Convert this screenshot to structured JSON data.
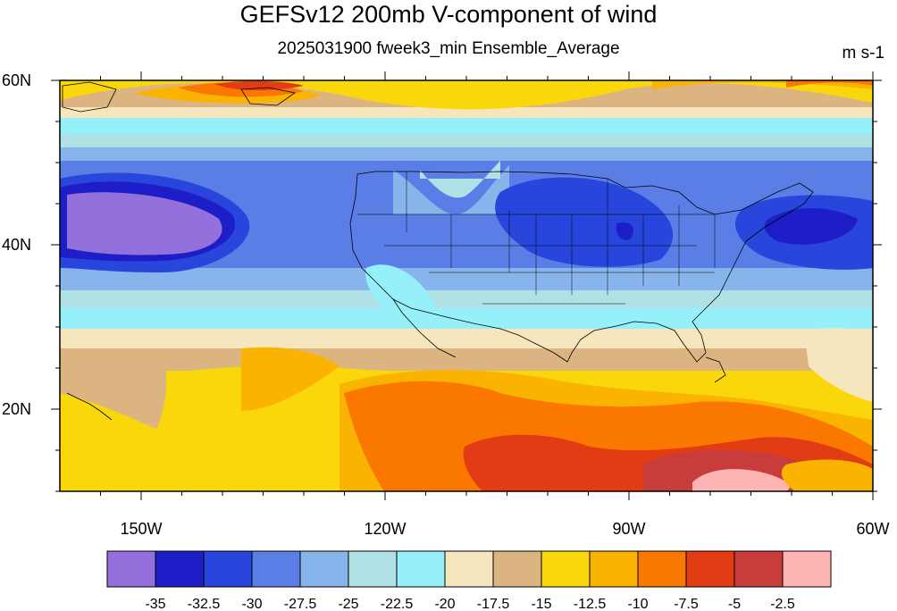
{
  "title": "GEFSv12 200mb V-component of wind",
  "subtitle": "2025031900 fweek3_min Ensemble_Average",
  "units": "m s-1",
  "map": {
    "lon_range": [
      -160,
      -60
    ],
    "lat_range": [
      10,
      60
    ],
    "lat_ticks": [
      {
        "value": 60,
        "label": "60N"
      },
      {
        "value": 40,
        "label": "40N"
      },
      {
        "value": 20,
        "label": "20N"
      }
    ],
    "lon_ticks": [
      {
        "value": -150,
        "label": "150W"
      },
      {
        "value": -120,
        "label": "120W"
      },
      {
        "value": -90,
        "label": "90W"
      },
      {
        "value": -60,
        "label": "60W"
      }
    ]
  },
  "colorbar": {
    "colors": [
      "#9370db",
      "#1e1ec8",
      "#2846dc",
      "#5a7ee6",
      "#87b4eb",
      "#afe1e6",
      "#96f0fa",
      "#f5e6be",
      "#dcb482",
      "#fad70a",
      "#fab400",
      "#fa7800",
      "#e13c14",
      "#c83c3c",
      "#ffb4b4"
    ],
    "labels": [
      "-35",
      "-32.5",
      "-30",
      "-27.5",
      "-25",
      "-22.5",
      "-20",
      "-17.5",
      "-15",
      "-12.5",
      "-10",
      "-7.5",
      "-5",
      "-2.5"
    ]
  }
}
